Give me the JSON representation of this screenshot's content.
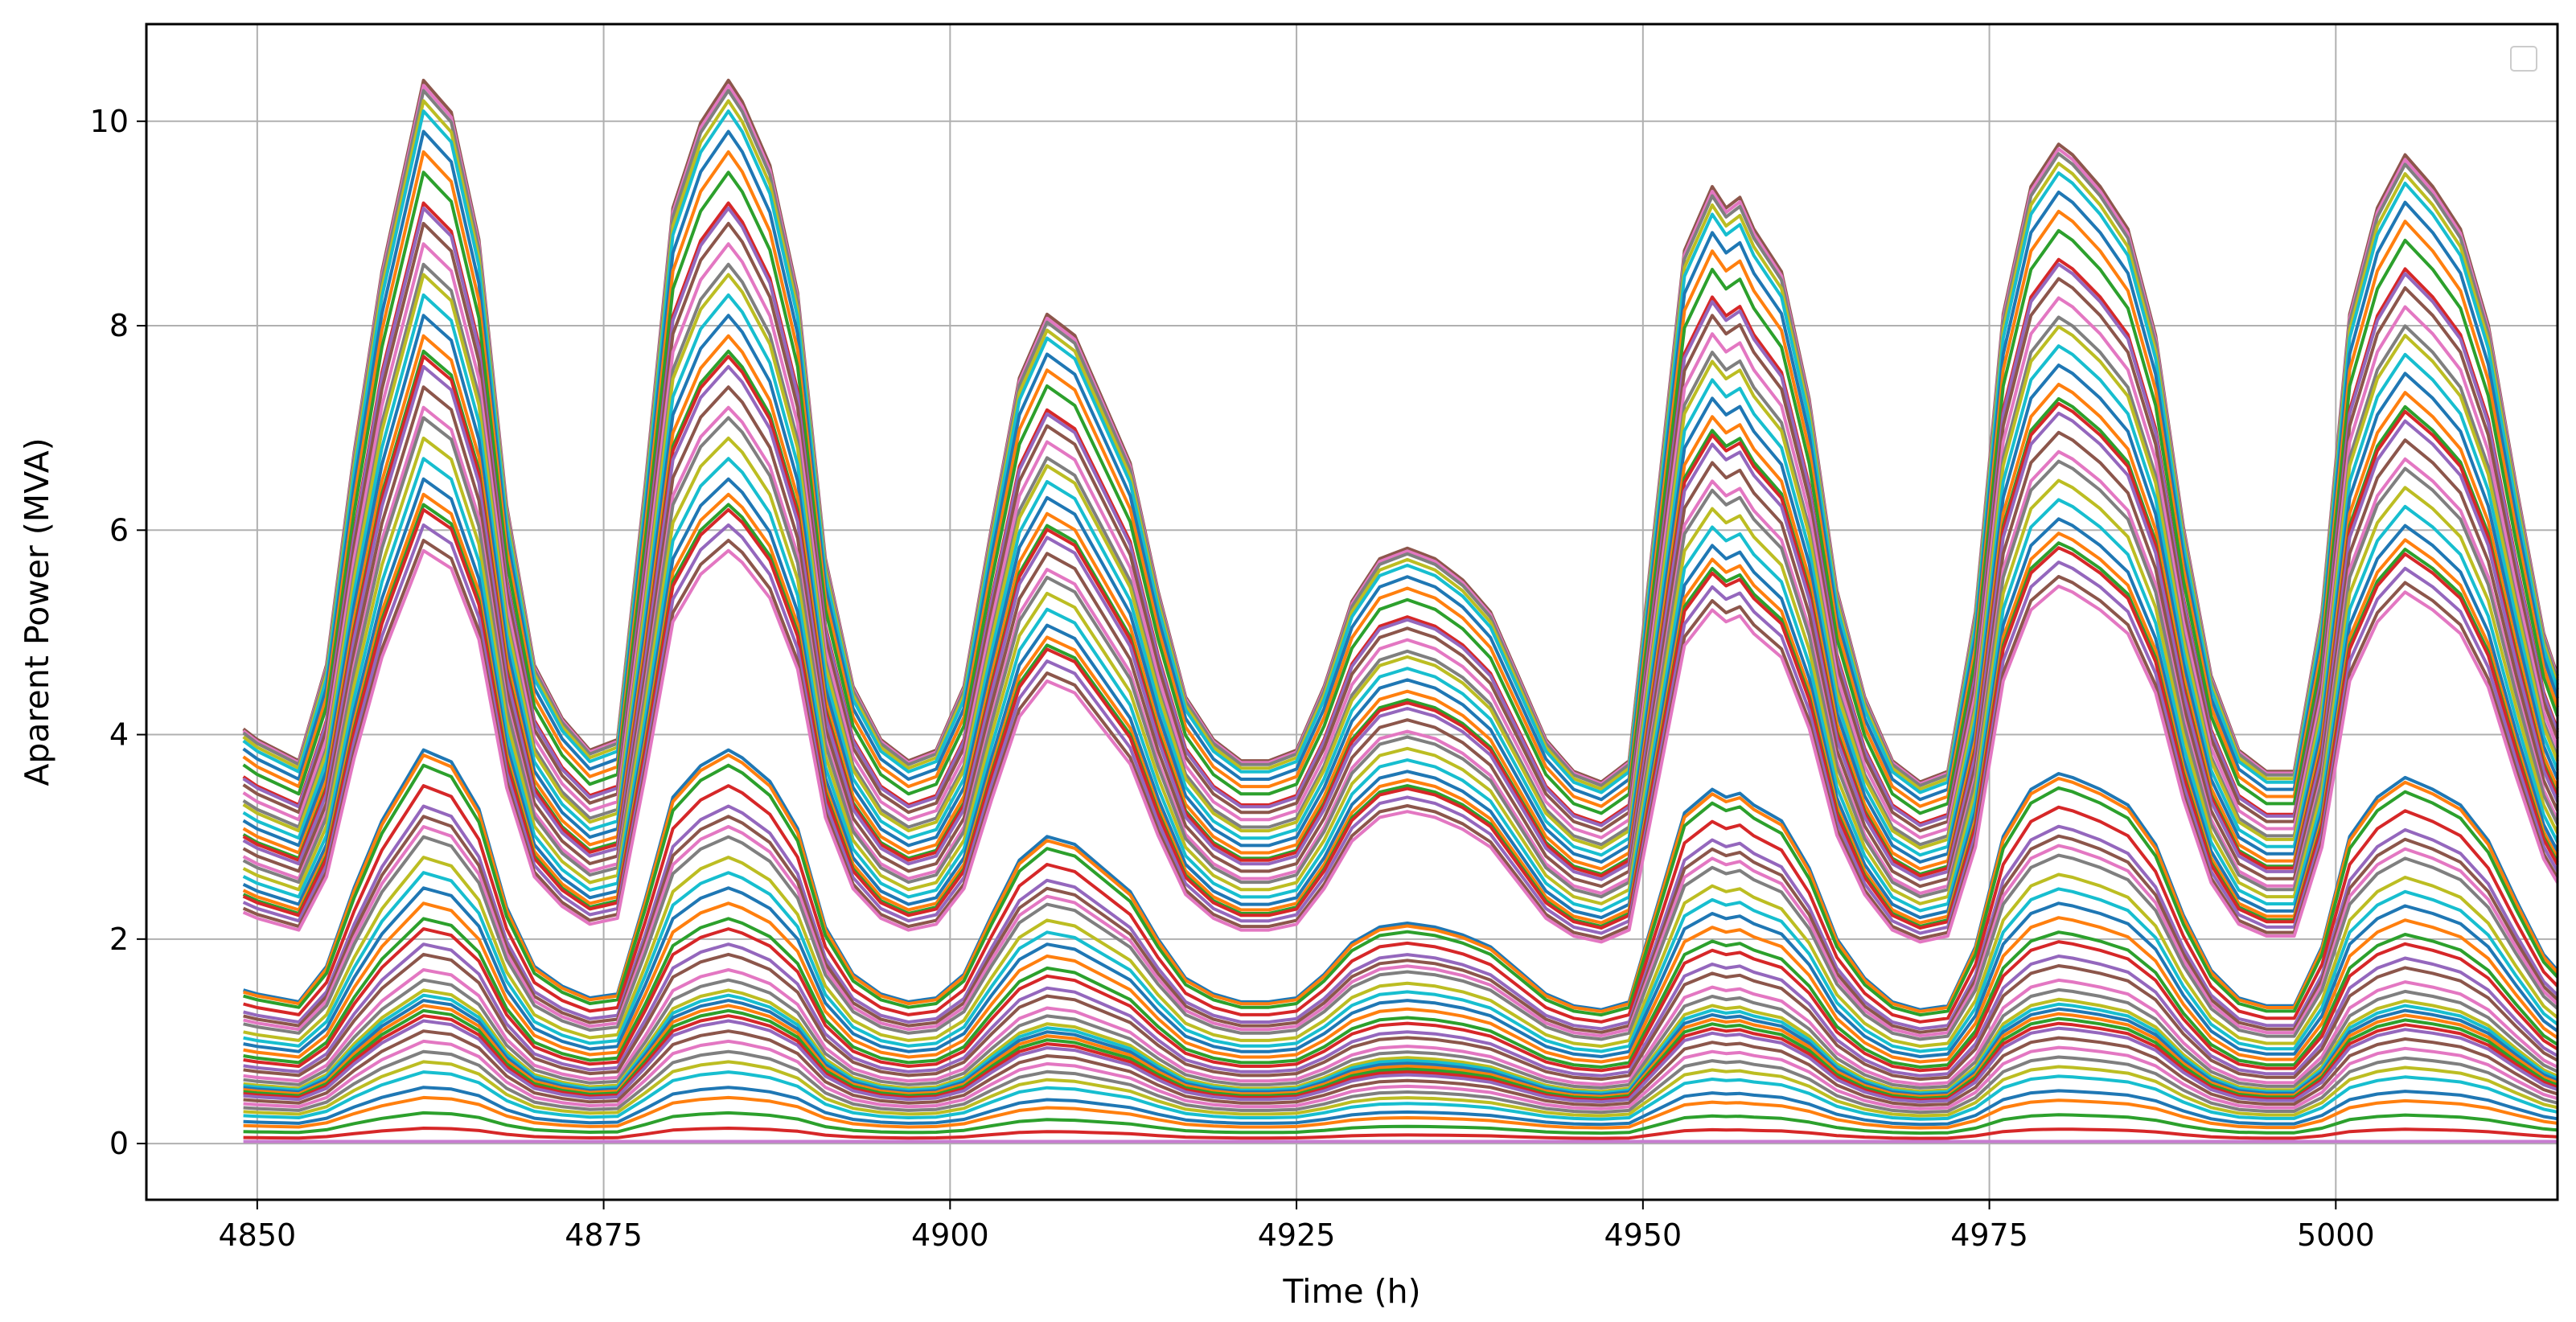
{
  "chart_data": {
    "type": "line",
    "title": "",
    "xlabel": "Time (h)",
    "ylabel": "Aparent Power (MVA)",
    "xlim": [
      4842,
      5016
    ],
    "ylim": [
      -0.55,
      10.95
    ],
    "xticks": [
      4850,
      4875,
      4900,
      4925,
      4950,
      4975,
      5000
    ],
    "yticks": [
      0,
      2,
      4,
      6,
      8,
      10
    ],
    "xtick_labels": [
      "4850",
      "4875",
      "4900",
      "4925",
      "4950",
      "4975",
      "5000"
    ],
    "ytick_labels": [
      "0",
      "2",
      "4",
      "6",
      "8",
      "10"
    ],
    "grid": true,
    "legend": "top-right, empty",
    "x_range": [
      4849,
      5016
    ],
    "colors": [
      "#1f77b4",
      "#ff7f0e",
      "#2ca02c",
      "#d62728",
      "#9467bd",
      "#8c564b",
      "#e377c2",
      "#7f7f7f",
      "#bcbd22",
      "#17becf"
    ],
    "shape_profile": {
      "x": [
        4849,
        4850,
        4853,
        4855,
        4857,
        4859,
        4861,
        4862,
        4864,
        4866,
        4868,
        4870,
        4872,
        4874,
        4876,
        4878,
        4880,
        4882,
        4884,
        4885,
        4887,
        4889,
        4891,
        4893,
        4895,
        4897,
        4899,
        4901,
        4903,
        4905,
        4907,
        4909,
        4911,
        4913,
        4915,
        4917,
        4919,
        4921,
        4923,
        4925,
        4927,
        4929,
        4931,
        4933,
        4935,
        4937,
        4939,
        4941,
        4943,
        4945,
        4947,
        4949,
        4951,
        4953,
        4955,
        4956,
        4957,
        4958,
        4960,
        4962,
        4964,
        4966,
        4968,
        4970,
        4972,
        4974,
        4976,
        4978,
        4980,
        4981,
        4983,
        4985,
        4987,
        4989,
        4991,
        4993,
        4995,
        4997,
        4999,
        5001,
        5003,
        5005,
        5007,
        5009,
        5011,
        5013,
        5015,
        5016
      ],
      "relative": [
        0.39,
        0.38,
        0.36,
        0.45,
        0.65,
        0.82,
        0.94,
        1.0,
        0.97,
        0.85,
        0.6,
        0.45,
        0.4,
        0.37,
        0.38,
        0.62,
        0.88,
        0.96,
        1.0,
        0.98,
        0.92,
        0.8,
        0.55,
        0.43,
        0.38,
        0.36,
        0.37,
        0.43,
        0.58,
        0.72,
        0.78,
        0.76,
        0.7,
        0.64,
        0.52,
        0.42,
        0.38,
        0.36,
        0.36,
        0.37,
        0.43,
        0.51,
        0.55,
        0.56,
        0.55,
        0.53,
        0.5,
        0.44,
        0.38,
        0.35,
        0.34,
        0.36,
        0.6,
        0.84,
        0.9,
        0.88,
        0.89,
        0.86,
        0.82,
        0.7,
        0.52,
        0.42,
        0.36,
        0.34,
        0.35,
        0.5,
        0.78,
        0.9,
        0.94,
        0.93,
        0.9,
        0.86,
        0.76,
        0.58,
        0.44,
        0.37,
        0.35,
        0.35,
        0.5,
        0.78,
        0.88,
        0.93,
        0.9,
        0.86,
        0.77,
        0.62,
        0.48,
        0.44
      ]
    },
    "upper_group_peaks": [
      10.4,
      10.35,
      10.3,
      10.2,
      10.1,
      9.9,
      9.7,
      9.5,
      9.2,
      9.15,
      9.0,
      8.8,
      8.6,
      8.5,
      8.3,
      8.1,
      7.9,
      7.75,
      7.7,
      7.6,
      7.4,
      7.2,
      7.1,
      6.9,
      6.7,
      6.5,
      6.35,
      6.25,
      6.2,
      6.05,
      5.9,
      5.8
    ],
    "lower_group_peaks": [
      3.85,
      3.8,
      3.7,
      3.5,
      3.3,
      3.2,
      3.1,
      3.0,
      2.8,
      2.65,
      2.5,
      2.35,
      2.2,
      2.1,
      1.95,
      1.85,
      1.7,
      1.6,
      1.5,
      1.45,
      1.4,
      1.35,
      1.3,
      1.25,
      1.2,
      1.1,
      1.0,
      0.9,
      0.8,
      0.7,
      0.55,
      0.45,
      0.3,
      0.15,
      0.02
    ]
  }
}
